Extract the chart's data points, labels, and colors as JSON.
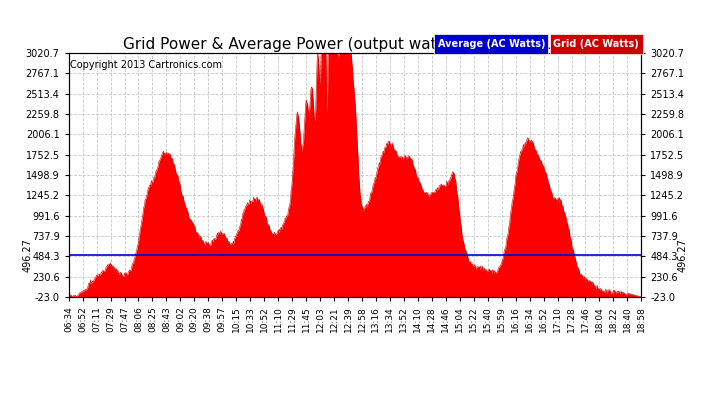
{
  "title": "Grid Power & Average Power (output watts)  Sat Apr 6 19:06",
  "copyright": "Copyright 2013 Cartronics.com",
  "legend_labels": [
    "Average (AC Watts)",
    "Grid (AC Watts)"
  ],
  "average_line_value": 496.27,
  "average_label": "496.27",
  "ylim": [
    -23.0,
    3020.7
  ],
  "yticks": [
    -23.0,
    230.6,
    484.3,
    737.9,
    991.6,
    1245.2,
    1498.9,
    1752.5,
    2006.1,
    2259.8,
    2513.4,
    2767.1,
    3020.7
  ],
  "ytick_labels": [
    "-23.0",
    "230.6",
    "484.3",
    "737.9",
    "991.6",
    "1245.2",
    "1498.9",
    "1752.5",
    "2006.1",
    "2259.8",
    "2513.4",
    "2767.1",
    "3020.7"
  ],
  "xtick_labels": [
    "06:34",
    "06:52",
    "07:11",
    "07:29",
    "07:47",
    "08:06",
    "08:25",
    "08:43",
    "09:02",
    "09:20",
    "09:38",
    "09:57",
    "10:15",
    "10:33",
    "10:52",
    "11:10",
    "11:29",
    "11:45",
    "12:03",
    "12:21",
    "12:39",
    "12:58",
    "13:16",
    "13:34",
    "13:52",
    "14:10",
    "14:28",
    "14:46",
    "15:04",
    "15:22",
    "15:40",
    "15:59",
    "16:16",
    "16:34",
    "16:52",
    "17:10",
    "17:28",
    "17:46",
    "18:04",
    "18:22",
    "18:40",
    "18:58"
  ],
  "background_color": "#ffffff",
  "grid_color": "#c8c8c8",
  "fill_color": "#ff0000",
  "line_color": "#cc0000",
  "avg_line_color": "#0000cc",
  "legend_blue": "#0000cc",
  "legend_red": "#cc0000",
  "title_fontsize": 11,
  "tick_fontsize": 7,
  "copyright_fontsize": 7
}
